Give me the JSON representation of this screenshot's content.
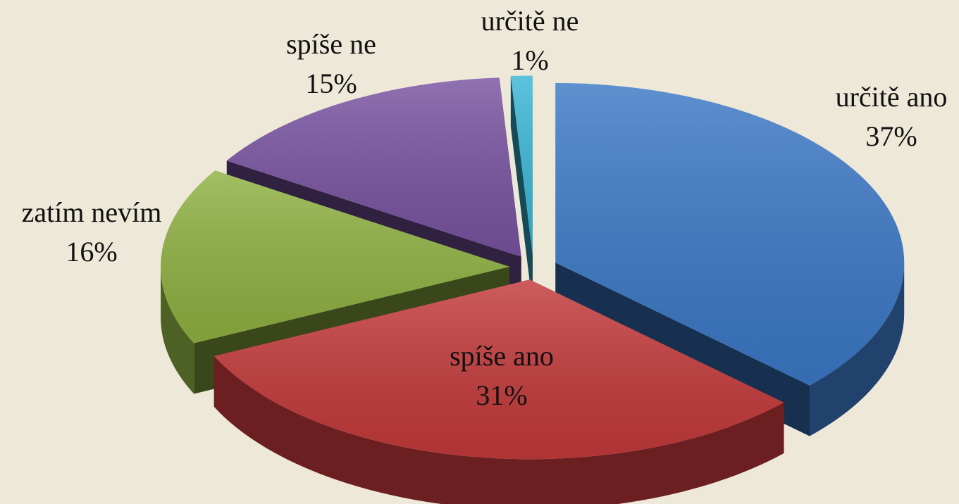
{
  "chart_data": {
    "type": "pie",
    "categories": [
      "určitě ano",
      "spíše ano",
      "zatím nevím",
      "spíše ne",
      "určitě ne"
    ],
    "values": [
      37,
      31,
      16,
      15,
      1
    ],
    "value_labels": [
      "37%",
      "31%",
      "16%",
      "15%",
      "1%"
    ],
    "colors": [
      "#3b78c6",
      "#c3393a",
      "#8eb141",
      "#7852a0",
      "#39b6d6"
    ]
  }
}
